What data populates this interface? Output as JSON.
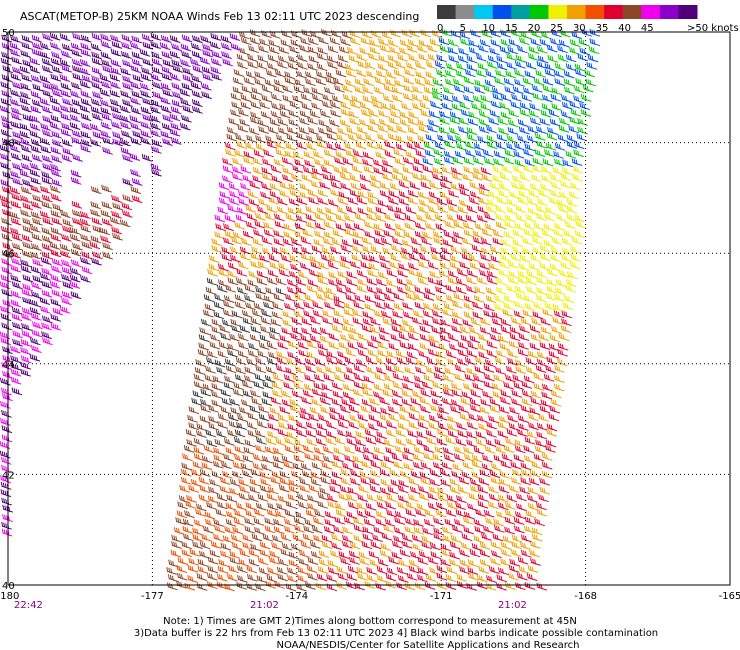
{
  "title": "ASCAT(METOP-B) 25KM NOAA Winds Feb 13 02:11 UTC 2023 descending",
  "legend": {
    "labels": [
      0,
      5,
      10,
      15,
      20,
      25,
      30,
      35,
      40,
      45,
      ">50 knots"
    ],
    "colors": [
      "#3c3c3c",
      "#8c8c8c",
      "#00c8f0",
      "#0050f0",
      "#00a0a0",
      "#00c800",
      "#f0f000",
      "#f0a000",
      "#f05000",
      "#e00030",
      "#8c4628",
      "#f000f0",
      "#8c00c8",
      "#500078"
    ]
  },
  "x_axis": {
    "labels": [
      -180,
      -177,
      -174,
      -171,
      -168,
      -165
    ]
  },
  "y_axis": {
    "labels": [
      50,
      48,
      46,
      44,
      42,
      40
    ]
  },
  "times": [
    "22:42",
    "21:02",
    "21:02"
  ],
  "notes": [
    "Note: 1) Times are GMT 2)Times along bottom correspond to measurement at 45N",
    "3)Data buffer is 22 hrs from Feb 13 02:11 UTC 2023 4] Black wind barbs indicate possible contamination",
    "NOAA/NESDIS/Center for Satellite Applications and Research"
  ]
}
